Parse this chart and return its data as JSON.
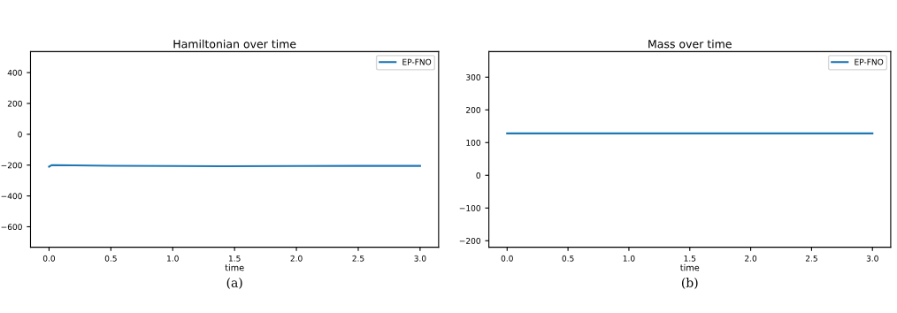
{
  "chart_data": [
    {
      "type": "line",
      "title": "Hamiltonian over time",
      "xlabel": "time",
      "xlim": [
        -0.15,
        3.15
      ],
      "xticks": [
        {
          "value": 0,
          "label": "0.0"
        },
        0.5,
        {
          "value": 1,
          "label": "1.0"
        },
        1.5,
        {
          "value": 2,
          "label": "2.0"
        },
        2.5,
        {
          "value": 3,
          "label": "3.0"
        }
      ],
      "ylim": [
        -733,
        536
      ],
      "yticks": [
        {
          "value": -600,
          "label": "−600"
        },
        {
          "value": -400,
          "label": "−400"
        },
        {
          "value": -200,
          "label": "−200"
        },
        0,
        200,
        400
      ],
      "grid": false,
      "legend": "top right",
      "annotations": [
        "(a)"
      ],
      "x": [
        0,
        0.02,
        0.05,
        0.2,
        0.5,
        1.0,
        1.4,
        2.0,
        2.5,
        3.0
      ],
      "series": [
        {
          "name": "EP-FNO",
          "color": "#1f77b4",
          "values": [
            -210,
            -201,
            -200,
            -202,
            -204,
            -206,
            -207,
            -206,
            -205,
            -205
          ]
        }
      ]
    },
    {
      "type": "line",
      "title": "Mass over time",
      "xlabel": "time",
      "xlim": [
        -0.15,
        3.15
      ],
      "xticks": [
        {
          "value": 0,
          "label": "0.0"
        },
        0.5,
        {
          "value": 1,
          "label": "1.0"
        },
        1.5,
        {
          "value": 2,
          "label": "2.0"
        },
        2.5,
        {
          "value": 3,
          "label": "3.0"
        }
      ],
      "ylim": [
        -220,
        378
      ],
      "yticks": [
        {
          "value": -200,
          "label": "−200"
        },
        {
          "value": -100,
          "label": "−100"
        },
        0,
        100,
        200,
        300
      ],
      "grid": false,
      "legend": "top right",
      "annotations": [
        "(b)"
      ],
      "x": [
        0,
        3.0
      ],
      "series": [
        {
          "name": "EP-FNO",
          "color": "#1f77b4",
          "values": [
            128,
            128
          ]
        }
      ]
    }
  ]
}
